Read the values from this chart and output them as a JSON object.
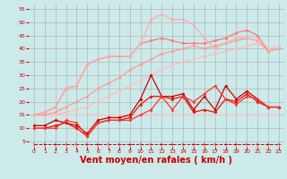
{
  "background_color": "#cceaea",
  "grid_color": "#aaaaaa",
  "xlabel": "Vent moyen/en rafales ( km/h )",
  "xlabel_color": "#cc0000",
  "xlabel_fontsize": 7,
  "xtick_color": "#cc0000",
  "ytick_color": "#cc0000",
  "xlim": [
    -0.5,
    23.5
  ],
  "ylim": [
    3,
    57
  ],
  "yticks": [
    5,
    10,
    15,
    20,
    25,
    30,
    35,
    40,
    45,
    50,
    55
  ],
  "xticks": [
    0,
    1,
    2,
    3,
    4,
    5,
    6,
    7,
    8,
    9,
    10,
    11,
    12,
    13,
    14,
    15,
    16,
    17,
    18,
    19,
    20,
    21,
    22,
    23
  ],
  "lines": [
    {
      "x": [
        0,
        1,
        2,
        3,
        4,
        5,
        6,
        7,
        8,
        9,
        10,
        11,
        12,
        13,
        14,
        15,
        16,
        17,
        18,
        19,
        20,
        21,
        22,
        23
      ],
      "y": [
        15,
        15,
        15,
        15,
        15,
        15,
        15,
        15,
        15,
        15,
        15,
        15,
        15,
        15,
        15,
        15,
        15,
        15,
        15,
        15,
        15,
        15,
        15,
        15
      ],
      "color": "#ffbbbb",
      "linewidth": 0.9,
      "marker": null,
      "linestyle": "-"
    },
    {
      "x": [
        0,
        1,
        2,
        3,
        4,
        5,
        6,
        7,
        8,
        9,
        10,
        11,
        12,
        13,
        14,
        15,
        16,
        17,
        18,
        19,
        20,
        21,
        22,
        23
      ],
      "y": [
        15,
        15,
        15,
        16,
        17,
        18,
        20,
        22,
        24,
        26,
        28,
        30,
        32,
        34,
        35,
        36,
        37,
        38,
        39,
        40,
        41,
        42,
        40,
        41
      ],
      "color": "#ffbbbb",
      "linewidth": 0.9,
      "marker": "D",
      "markersize": 1.5,
      "linestyle": "-"
    },
    {
      "x": [
        0,
        1,
        2,
        3,
        4,
        5,
        6,
        7,
        8,
        9,
        10,
        11,
        12,
        13,
        14,
        15,
        16,
        17,
        18,
        19,
        20,
        21,
        22,
        23
      ],
      "y": [
        15,
        15,
        16,
        18,
        20,
        22,
        25,
        27,
        29,
        32,
        34,
        36,
        38,
        39,
        40,
        41,
        40,
        41,
        42,
        43,
        44,
        43,
        39,
        40
      ],
      "color": "#ff9999",
      "linewidth": 0.9,
      "marker": "D",
      "markersize": 1.5,
      "linestyle": "-"
    },
    {
      "x": [
        0,
        1,
        2,
        3,
        4,
        5,
        6,
        7,
        8,
        9,
        10,
        11,
        12,
        13,
        14,
        15,
        16,
        17,
        18,
        19,
        20,
        21,
        22,
        23
      ],
      "y": [
        15,
        16,
        18,
        25,
        26,
        34,
        36,
        37,
        37,
        37,
        42,
        43,
        44,
        43,
        42,
        42,
        42,
        43,
        44,
        46,
        47,
        45,
        39,
        40
      ],
      "color": "#ff7777",
      "linewidth": 0.9,
      "marker": "D",
      "markersize": 1.5,
      "linestyle": "-"
    },
    {
      "x": [
        0,
        1,
        2,
        3,
        4,
        5,
        6,
        7,
        8,
        9,
        10,
        11,
        12,
        13,
        14,
        15,
        16,
        17,
        18,
        19,
        20,
        21,
        22,
        23
      ],
      "y": [
        15,
        16,
        18,
        25,
        26,
        34,
        36,
        37,
        37,
        37,
        42,
        51,
        53,
        51,
        51,
        49,
        44,
        40,
        42,
        44,
        44,
        43,
        39,
        40
      ],
      "color": "#ffaaaa",
      "linewidth": 0.9,
      "marker": "D",
      "markersize": 1.5,
      "linestyle": "-"
    },
    {
      "x": [
        0,
        1,
        2,
        3,
        4,
        5,
        6,
        7,
        8,
        9,
        10,
        11,
        12,
        13,
        14,
        15,
        16,
        17,
        18,
        19,
        20,
        21,
        22,
        23
      ],
      "y": [
        11,
        11,
        13,
        12,
        11,
        8,
        13,
        14,
        14,
        15,
        21,
        30,
        22,
        22,
        23,
        17,
        22,
        17,
        26,
        21,
        24,
        21,
        18,
        18
      ],
      "color": "#cc0000",
      "linewidth": 0.9,
      "marker": "D",
      "markersize": 1.5,
      "linestyle": "-"
    },
    {
      "x": [
        0,
        1,
        2,
        3,
        4,
        5,
        6,
        7,
        8,
        9,
        10,
        11,
        12,
        13,
        14,
        15,
        16,
        17,
        18,
        19,
        20,
        21,
        22,
        23
      ],
      "y": [
        10,
        10,
        11,
        12,
        10,
        7,
        12,
        13,
        13,
        14,
        19,
        22,
        22,
        21,
        22,
        16,
        17,
        16,
        21,
        20,
        23,
        20,
        18,
        18
      ],
      "color": "#ee1100",
      "linewidth": 0.9,
      "marker": "D",
      "markersize": 1.5,
      "linestyle": "-"
    },
    {
      "x": [
        0,
        1,
        2,
        3,
        4,
        5,
        6,
        7,
        8,
        9,
        10,
        11,
        12,
        13,
        14,
        15,
        16,
        17,
        18,
        19,
        20,
        21,
        22,
        23
      ],
      "y": [
        10,
        10,
        10,
        13,
        12,
        7,
        12,
        13,
        13,
        13,
        15,
        17,
        22,
        17,
        22,
        20,
        23,
        26,
        21,
        19,
        22,
        21,
        18,
        18
      ],
      "color": "#ff3333",
      "linewidth": 0.9,
      "marker": "D",
      "markersize": 1.5,
      "linestyle": "-"
    },
    {
      "x": [
        0,
        1,
        2,
        3,
        4,
        5,
        6,
        7,
        8,
        9,
        10,
        11,
        12,
        13,
        14,
        15,
        16,
        17,
        18,
        19,
        20,
        21,
        22,
        23
      ],
      "y": [
        4,
        4,
        4,
        4,
        4,
        4,
        4,
        4,
        4,
        4,
        4,
        4,
        4,
        4,
        4,
        4,
        4,
        4,
        4,
        4,
        4,
        4,
        4,
        4
      ],
      "color": "#cc0000",
      "linewidth": 0.7,
      "marker": "4",
      "markersize": 3,
      "linestyle": "--"
    }
  ]
}
